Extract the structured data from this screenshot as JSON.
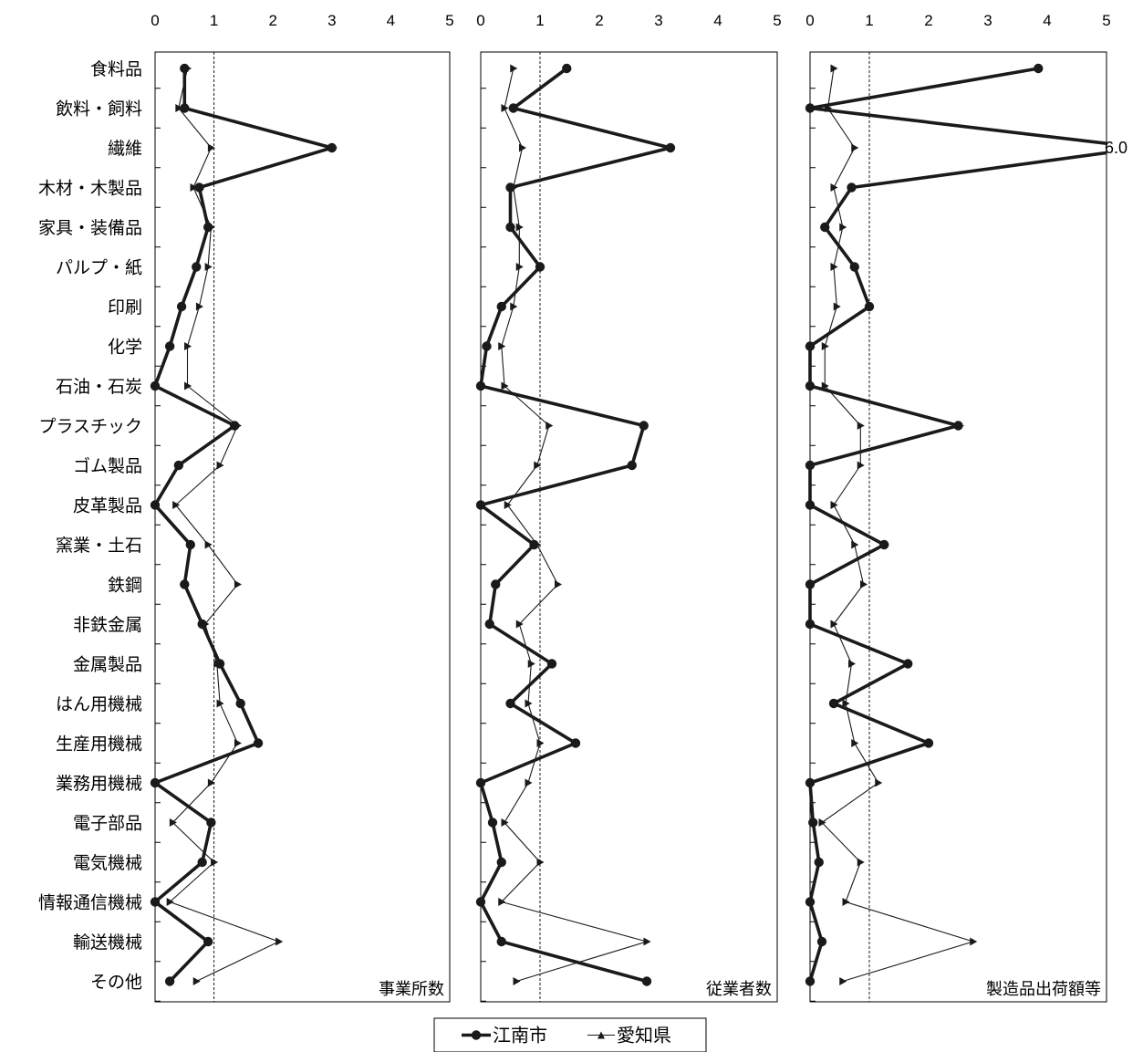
{
  "chart_data": {
    "type": "line",
    "categories": [
      "食料品",
      "飲料・飼料",
      "繊維",
      "木材・木製品",
      "家具・装備品",
      "パルプ・紙",
      "印刷",
      "化学",
      "石油・石炭",
      "プラスチック",
      "ゴム製品",
      "皮革製品",
      "窯業・土石",
      "鉄鋼",
      "非鉄金属",
      "金属製品",
      "はん用機械",
      "生産用機械",
      "業務用機械",
      "電子部品",
      "電気機械",
      "情報通信機械",
      "輸送機械",
      "その他"
    ],
    "xlim": [
      0,
      5
    ],
    "x_ticks": [
      "0",
      "1",
      "2",
      "3",
      "4",
      "5"
    ],
    "reference_line": 1,
    "legend": {
      "placement": "bottom-center",
      "items": [
        "江南市",
        "愛知県"
      ]
    },
    "panels": [
      {
        "title": "事業所数",
        "series": [
          {
            "name": "江南市",
            "values": [
              0.5,
              0.5,
              3.0,
              0.75,
              0.9,
              0.7,
              0.45,
              0.25,
              0.0,
              1.35,
              0.4,
              0.0,
              0.6,
              0.5,
              0.8,
              1.1,
              1.45,
              1.75,
              0.0,
              0.95,
              0.8,
              0.0,
              0.9,
              0.25
            ]
          },
          {
            "name": "愛知県",
            "values": [
              0.55,
              0.4,
              0.95,
              0.65,
              0.95,
              0.9,
              0.75,
              0.55,
              0.55,
              1.4,
              1.1,
              0.35,
              0.9,
              1.4,
              0.85,
              1.05,
              1.1,
              1.4,
              0.95,
              0.3,
              1.0,
              0.25,
              2.1,
              0.7
            ]
          }
        ]
      },
      {
        "title": "従業者数",
        "series": [
          {
            "name": "江南市",
            "values": [
              1.45,
              0.55,
              3.2,
              0.5,
              0.5,
              1.0,
              0.35,
              0.1,
              0.0,
              2.75,
              2.55,
              0.0,
              0.9,
              0.25,
              0.15,
              1.2,
              0.5,
              1.6,
              0.0,
              0.2,
              0.35,
              0.0,
              0.35,
              2.8
            ]
          },
          {
            "name": "愛知県",
            "values": [
              0.55,
              0.4,
              0.7,
              0.55,
              0.65,
              0.65,
              0.55,
              0.35,
              0.4,
              1.15,
              0.95,
              0.45,
              0.95,
              1.3,
              0.65,
              0.85,
              0.8,
              1.0,
              0.8,
              0.4,
              1.0,
              0.35,
              2.8,
              0.6
            ]
          }
        ]
      },
      {
        "title": "製造品出荷額等",
        "series": [
          {
            "name": "江南市",
            "values": [
              3.85,
              0.0,
              6.0,
              0.7,
              0.25,
              0.75,
              1.0,
              0.0,
              0.0,
              2.5,
              0.0,
              0.0,
              1.25,
              0.0,
              0.0,
              1.65,
              0.4,
              2.0,
              0.0,
              0.05,
              0.15,
              0.0,
              0.2,
              0.0
            ]
          },
          {
            "name": "愛知県",
            "values": [
              0.4,
              0.3,
              0.75,
              0.4,
              0.55,
              0.4,
              0.45,
              0.25,
              0.25,
              0.85,
              0.85,
              0.4,
              0.75,
              0.9,
              0.4,
              0.7,
              0.6,
              0.75,
              1.15,
              0.2,
              0.85,
              0.6,
              2.75,
              0.55
            ]
          }
        ],
        "annotation": "6.0"
      }
    ],
    "colors": {
      "江南市": "#1a1a1a",
      "愛知県": "#1a1a1a"
    }
  }
}
